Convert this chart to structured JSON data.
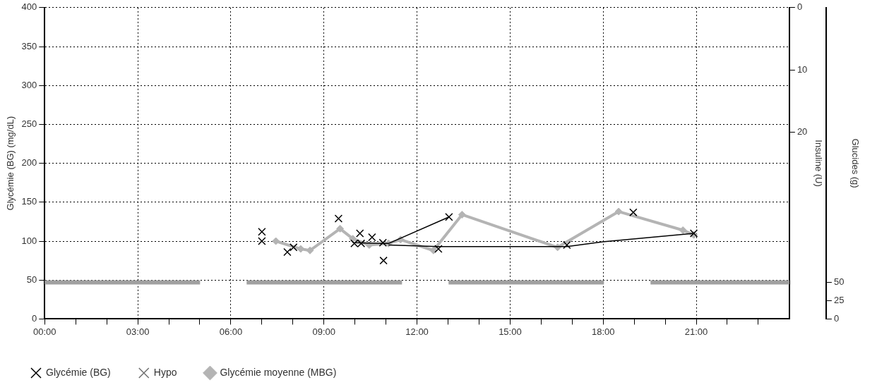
{
  "chart_data": {
    "type": "scatter",
    "ylabel": "Glycémie (BG) (mg/dL)",
    "y2label": "Insuline (U)",
    "y3label": "Glucides (g)",
    "xlim": [
      0,
      24
    ],
    "xticks": [
      {
        "value": 0,
        "label": "00:00"
      },
      {
        "value": 1,
        "label": null
      },
      {
        "value": 2,
        "label": null
      },
      {
        "value": 3,
        "label": "03:00"
      },
      {
        "value": 4,
        "label": null
      },
      {
        "value": 5,
        "label": null
      },
      {
        "value": 6,
        "label": "06:00"
      },
      {
        "value": 7,
        "label": null
      },
      {
        "value": 8,
        "label": null
      },
      {
        "value": 9,
        "label": "09:00"
      },
      {
        "value": 10,
        "label": null
      },
      {
        "value": 11,
        "label": null
      },
      {
        "value": 12,
        "label": "12:00"
      },
      {
        "value": 13,
        "label": null
      },
      {
        "value": 14,
        "label": null
      },
      {
        "value": 15,
        "label": "15:00"
      },
      {
        "value": 16,
        "label": null
      },
      {
        "value": 17,
        "label": null
      },
      {
        "value": 18,
        "label": "18:00"
      },
      {
        "value": 19,
        "label": null
      },
      {
        "value": 20,
        "label": null
      },
      {
        "value": 21,
        "label": "21:00"
      },
      {
        "value": 22,
        "label": null
      },
      {
        "value": 23,
        "label": null
      }
    ],
    "ylim": [
      0,
      400
    ],
    "yticks": [
      0,
      50,
      100,
      150,
      200,
      250,
      300,
      350,
      400
    ],
    "y2lim": [
      50,
      0
    ],
    "y2ticks": [
      0,
      10,
      20
    ],
    "y3lim": [
      0,
      425
    ],
    "y3ticks": [
      0,
      25,
      50
    ],
    "grid": true,
    "legend": "bottom",
    "ref_lines": [
      {
        "axis": "y",
        "value": 47,
        "color": "#a0a0a0",
        "line_style": "dashed"
      }
    ],
    "series": [
      {
        "type": "line",
        "color": "#000000",
        "marker": "none",
        "x": [
          9.93,
          11.08,
          13.03
        ],
        "values": [
          98,
          97,
          131
        ]
      },
      {
        "type": "line",
        "color": "#000000",
        "marker": "none",
        "x": [
          11.08,
          12.69,
          16.83,
          17.98,
          20.92
        ],
        "values": [
          95,
          93,
          93,
          99,
          110
        ]
      },
      {
        "name": "Glycémie (BG)",
        "color": "#000000",
        "marker": "cross",
        "x": [
          7.0,
          7.0,
          7.82,
          8.02,
          9.47,
          9.98,
          10.16,
          10.2,
          10.55,
          10.9,
          10.92,
          12.69,
          13.03,
          16.83,
          18.97,
          20.92
        ],
        "values": [
          112,
          100,
          86,
          92,
          129,
          97,
          110,
          97,
          105,
          98,
          75,
          90,
          131,
          95,
          137,
          110
        ]
      },
      {
        "name": "Hypo",
        "color": "#707070",
        "marker": "cross"
      },
      {
        "type": "line",
        "name": "Glycémie moyenne (MBG)",
        "color": "#b4b4b4",
        "marker": "diamond",
        "x": [
          7.45,
          8.25,
          8.55,
          9.52,
          9.93,
          10.46,
          11.08,
          11.47,
          12.53,
          13.45,
          16.53,
          18.5,
          20.57,
          20.92
        ],
        "values": [
          100,
          90,
          88,
          116,
          103,
          95,
          97,
          102,
          88,
          134,
          92,
          138,
          114,
          108
        ]
      }
    ]
  }
}
